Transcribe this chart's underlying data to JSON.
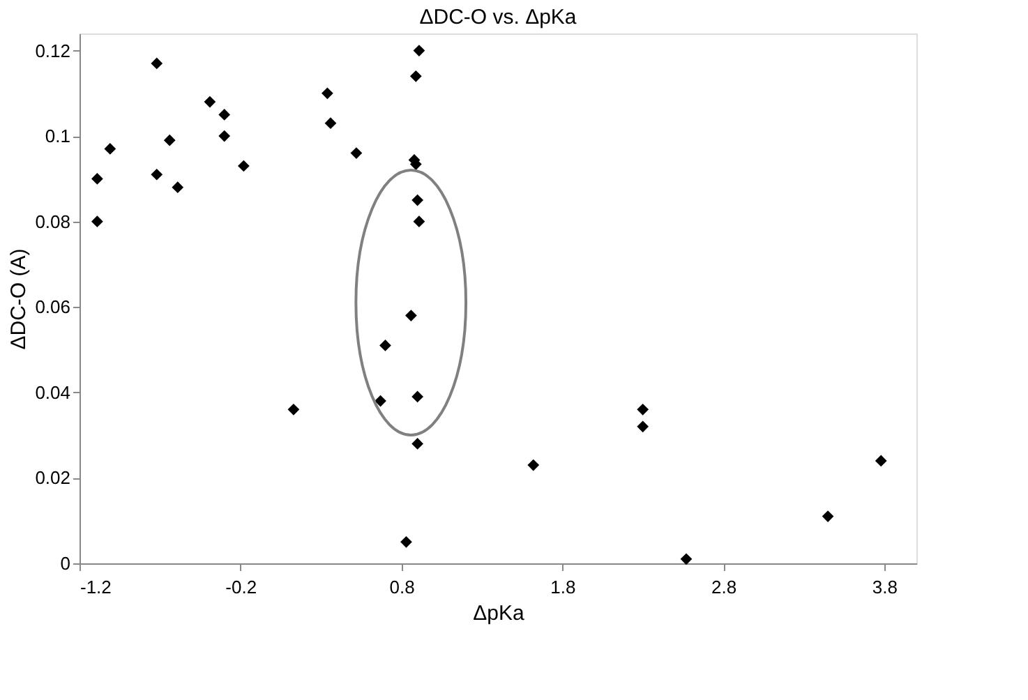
{
  "chart_data": {
    "type": "scatter",
    "title": "ΔDC-O vs.  ΔpKa",
    "xlabel": "ΔpKa",
    "ylabel": "ΔDC-O (A)",
    "x": [
      -1.09,
      -1.09,
      -1.01,
      -0.72,
      -0.72,
      -0.64,
      -0.59,
      -0.39,
      -0.3,
      -0.3,
      -0.18,
      0.13,
      0.34,
      0.36,
      0.52,
      0.7,
      0.67,
      0.86,
      0.83,
      0.91,
      0.89,
      0.88,
      0.89,
      0.9,
      0.91,
      0.9,
      0.9,
      1.62,
      2.3,
      2.3,
      2.57,
      3.45,
      3.78
    ],
    "series": [
      {
        "color": "#000000",
        "values": [
          0.09,
          0.08,
          0.097,
          0.117,
          0.091,
          0.099,
          0.088,
          0.108,
          0.105,
          0.1,
          0.093,
          0.036,
          0.11,
          0.103,
          0.096,
          0.051,
          0.038,
          0.058,
          0.005,
          0.12,
          0.114,
          0.0944,
          0.0934,
          0.085,
          0.08,
          0.039,
          0.028,
          0.023,
          0.036,
          0.032,
          0.001,
          0.011,
          0.024
        ]
      }
    ],
    "xlim": [
      -1.2,
      4.0
    ],
    "ylim": [
      0,
      0.124
    ],
    "xticks": [
      -1.2,
      -0.2,
      0.8,
      1.8,
      2.8,
      3.8
    ],
    "yticks": [
      0,
      0.02,
      0.04,
      0.06,
      0.08,
      0.1,
      0.12
    ],
    "grid": false,
    "legend": false,
    "marker": "diamond"
  }
}
